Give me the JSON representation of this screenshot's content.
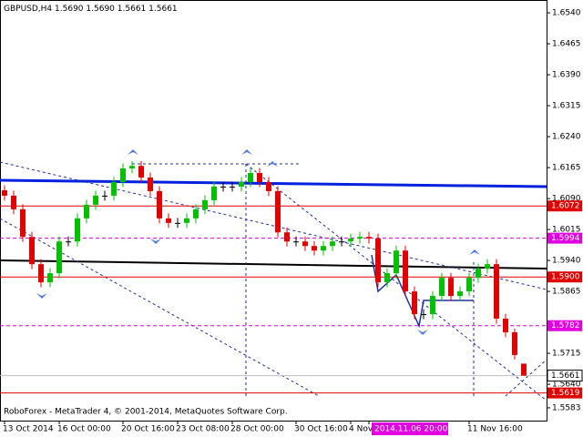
{
  "chart_data": {
    "type": "candlestick",
    "header": {
      "symbol": "GBPUSD,H4",
      "ohlc": [
        "1.5690",
        "1.5690",
        "1.5661",
        "1.5661"
      ]
    },
    "footer": "RoboForex - MetaTrader 4, © 2001-2014, MetaQuotes Software Corp.",
    "up_color": "#00c000",
    "down_color": "#e00000",
    "categories": [
      "13 Oct 2014",
      null,
      null,
      null,
      null,
      null,
      "16 Oct 00:00",
      null,
      null,
      null,
      null,
      null,
      null,
      "20 Oct 16:00",
      null,
      null,
      null,
      null,
      null,
      "23 Oct 08:00",
      null,
      null,
      null,
      null,
      null,
      "28 Oct 00:00",
      null,
      null,
      null,
      null,
      null,
      null,
      "30 Oct 16:00",
      null,
      null,
      null,
      null,
      null,
      "4 Nov",
      null,
      "2014.11.06 20:00",
      null,
      null,
      null,
      null,
      null,
      null,
      null,
      null,
      null,
      null,
      "11 Nov 16:00",
      null,
      null,
      null,
      null,
      null,
      null
    ],
    "candles": [
      [
        1.611,
        1.6122,
        1.6085,
        1.6097
      ],
      [
        1.6097,
        1.6109,
        1.6052,
        1.6064
      ],
      [
        1.6064,
        1.6076,
        1.5985,
        1.5997
      ],
      [
        1.5997,
        1.6009,
        1.5919,
        1.5931
      ],
      [
        1.5931,
        1.5943,
        1.5875,
        1.5887
      ],
      [
        1.5887,
        1.5921,
        1.5875,
        1.5909
      ],
      [
        1.5909,
        1.5998,
        1.5897,
        1.5986
      ],
      [
        1.5986,
        1.5998,
        1.5974,
        1.5986
      ],
      [
        1.5986,
        1.6054,
        1.5974,
        1.6042
      ],
      [
        1.6042,
        1.6087,
        1.603,
        1.6075
      ],
      [
        1.6075,
        1.6109,
        1.6063,
        1.6097
      ],
      [
        1.6097,
        1.6109,
        1.6085,
        1.6097
      ],
      [
        1.6097,
        1.6142,
        1.6085,
        1.613
      ],
      [
        1.613,
        1.6175,
        1.6118,
        1.6163
      ],
      [
        1.6163,
        1.6181,
        1.6151,
        1.6169
      ],
      [
        1.6169,
        1.6181,
        1.6129,
        1.6141
      ],
      [
        1.6141,
        1.6153,
        1.6096,
        1.6108
      ],
      [
        1.6108,
        1.612,
        1.603,
        1.6042
      ],
      [
        1.6042,
        1.6054,
        1.6019,
        1.6031
      ],
      [
        1.6031,
        1.6043,
        1.6019,
        1.6031
      ],
      [
        1.6031,
        1.6054,
        1.6019,
        1.6042
      ],
      [
        1.6042,
        1.6076,
        1.603,
        1.6064
      ],
      [
        1.6064,
        1.6098,
        1.6052,
        1.6086
      ],
      [
        1.6086,
        1.6131,
        1.6074,
        1.6119
      ],
      [
        1.6119,
        1.6131,
        1.6107,
        1.6119
      ],
      [
        1.6119,
        1.6131,
        1.6107,
        1.6119
      ],
      [
        1.6119,
        1.6142,
        1.6107,
        1.613
      ],
      [
        1.613,
        1.6164,
        1.6118,
        1.6152
      ],
      [
        1.6152,
        1.6164,
        1.6118,
        1.613
      ],
      [
        1.613,
        1.6142,
        1.6096,
        1.6108
      ],
      [
        1.6108,
        1.612,
        1.5996,
        1.6008
      ],
      [
        1.6008,
        1.602,
        1.5974,
        1.5986
      ],
      [
        1.5986,
        1.5998,
        1.5974,
        1.5986
      ],
      [
        1.5986,
        1.5998,
        1.5963,
        1.5975
      ],
      [
        1.5975,
        1.5987,
        1.5952,
        1.5964
      ],
      [
        1.5964,
        1.5987,
        1.5952,
        1.5975
      ],
      [
        1.5975,
        1.5998,
        1.5963,
        1.5986
      ],
      [
        1.5986,
        1.5998,
        1.5974,
        1.5986
      ],
      [
        1.5986,
        1.6005,
        1.5974,
        1.5993
      ],
      [
        1.5993,
        1.6009,
        1.5981,
        1.5997
      ],
      [
        1.5997,
        1.6009,
        1.5981,
        1.5993
      ],
      [
        1.5993,
        1.6005,
        1.5875,
        1.5887
      ],
      [
        1.5887,
        1.5921,
        1.5875,
        1.5909
      ],
      [
        1.5909,
        1.5976,
        1.5897,
        1.5964
      ],
      [
        1.5964,
        1.5976,
        1.5853,
        1.5865
      ],
      [
        1.5865,
        1.5877,
        1.5798,
        1.581
      ],
      [
        1.581,
        1.5822,
        1.5798,
        1.581
      ],
      [
        1.581,
        1.5866,
        1.5798,
        1.5854
      ],
      [
        1.5854,
        1.591,
        1.5842,
        1.5898
      ],
      [
        1.5898,
        1.591,
        1.5842,
        1.5854
      ],
      [
        1.5854,
        1.5877,
        1.5842,
        1.5865
      ],
      [
        1.5865,
        1.591,
        1.5853,
        1.5898
      ],
      [
        1.5898,
        1.5932,
        1.5886,
        1.592
      ],
      [
        1.592,
        1.5943,
        1.5908,
        1.5931
      ],
      [
        1.5931,
        1.5943,
        1.5787,
        1.5799
      ],
      [
        1.5799,
        1.5811,
        1.5754,
        1.5766
      ],
      [
        1.5766,
        1.5775,
        1.57,
        1.5711
      ],
      [
        1.569,
        1.569,
        1.5661,
        1.5661
      ]
    ],
    "ylim": [
      1.5552,
      1.6571
    ],
    "yticks": [
      {
        "value": 1.654,
        "label": "1.6540"
      },
      {
        "value": 1.6465,
        "label": "1.6465"
      },
      {
        "value": 1.639,
        "label": "1.6390"
      },
      {
        "value": 1.6315,
        "label": "1.6315"
      },
      {
        "value": 1.624,
        "label": "1.6240"
      },
      {
        "value": 1.6165,
        "label": "1.6165"
      },
      {
        "value": 1.609,
        "label": "1.6090"
      },
      {
        "value": 1.6015,
        "label": "1.6015"
      },
      {
        "value": 1.594,
        "label": "1.5940"
      },
      {
        "value": 1.5865,
        "label": "1.5865"
      },
      {
        "value": 1.5715,
        "label": "1.5715"
      },
      {
        "value": 1.564,
        "label": "1.5640"
      },
      {
        "value": 1.5583,
        "label": "1.5583"
      }
    ],
    "levels": [
      {
        "value": 1.6072,
        "label": "1.6072",
        "color": "#e00000",
        "dashed": false
      },
      {
        "value": 1.5994,
        "label": "1.5994",
        "color": "#e000e0",
        "dashed": true
      },
      {
        "value": 1.59,
        "label": "1.5900",
        "color": "#e00000",
        "dashed": false
      },
      {
        "value": 1.5782,
        "label": "1.5782",
        "color": "#e000e0",
        "dashed": true
      },
      {
        "value": 1.5619,
        "label": "1.5619",
        "color": "#e00000",
        "dashed": false
      }
    ],
    "current": {
      "value": 1.5661,
      "label": "1.5661"
    }
  }
}
